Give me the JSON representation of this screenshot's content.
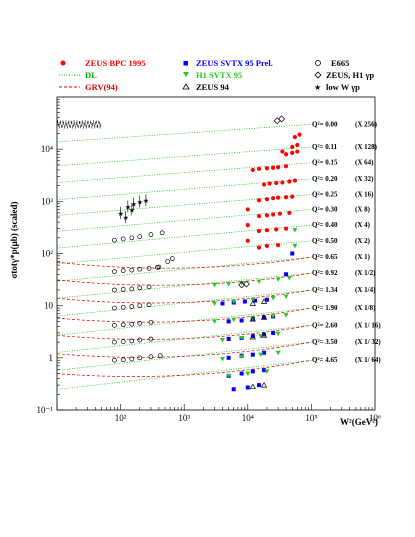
{
  "colors": {
    "zeus_bpc": "#ff0000",
    "zeus_svtx": "#0000ff",
    "h1_svtx": "#22cc22",
    "dl_line": "#00bb00",
    "grv_line": "#dd0000",
    "black": "#000000"
  },
  "legend": {
    "zeus_bpc": "ZEUS BPC 1995",
    "dl": "DL",
    "grv": "GRV(94)",
    "zeus_svtx": "ZEUS SVTX 95 Prel.",
    "h1_svtx": "H1 SVTX 95",
    "zeus94": "ZEUS 94",
    "e665": "E665",
    "zeus_h1_gp": "ZEUS, H1 γp",
    "low_w_gp": "low W γp"
  },
  "chart_data": {
    "type": "scatter",
    "xlabel": "W²(GeV²)",
    "ylabel": "σtotγ*p(μb) (scaled)",
    "x_scale": "log",
    "y_scale": "log",
    "xlim": [
      10,
      1000000
    ],
    "ylim": [
      0.1,
      100000
    ],
    "grid": false,
    "legend_position": "top",
    "x_ticks": [
      {
        "value": 100,
        "label": "10²"
      },
      {
        "value": 1000,
        "label": "10³"
      },
      {
        "value": 10000,
        "label": "10⁴"
      },
      {
        "value": 100000,
        "label": "10⁵"
      },
      {
        "value": 1000000,
        "label": "10⁶"
      }
    ],
    "y_ticks": [
      {
        "value": 0.1,
        "label": "10⁻¹"
      },
      {
        "value": 1,
        "label": "1"
      },
      {
        "value": 10,
        "label": "10"
      },
      {
        "value": 100,
        "label": "10²"
      },
      {
        "value": 1000,
        "label": "10³"
      },
      {
        "value": 10000,
        "label": "10⁴"
      }
    ],
    "bins": [
      {
        "q2": "Q²= 0.00",
        "scale": "(X 256)",
        "y_ref": 30000,
        "slope": 0.085,
        "grv": false
      },
      {
        "q2": "Q²= 0.11",
        "scale": "(X 128)",
        "y_ref": 11000,
        "slope": 0.09,
        "grv": false
      },
      {
        "q2": "Q²= 0.15",
        "scale": "(X  64)",
        "y_ref": 5500,
        "slope": 0.095,
        "grv": false
      },
      {
        "q2": "Q²= 0.20",
        "scale": "(X  32)",
        "y_ref": 2700,
        "slope": 0.1,
        "grv": false
      },
      {
        "q2": "Q²= 0.25",
        "scale": "(X  16)",
        "y_ref": 1350,
        "slope": 0.1,
        "grv": false
      },
      {
        "q2": "Q²= 0.30",
        "scale": "(X   8)",
        "y_ref": 700,
        "slope": 0.105,
        "grv": false
      },
      {
        "q2": "Q²= 0.40",
        "scale": "(X   4)",
        "y_ref": 350,
        "slope": 0.11,
        "grv": false
      },
      {
        "q2": "Q²= 0.50",
        "scale": "(X   2)",
        "y_ref": 175,
        "slope": 0.11,
        "grv": false
      },
      {
        "q2": "Q²= 0.65",
        "scale": "(X   1)",
        "y_ref": 85,
        "slope": 0.115,
        "grv": true
      },
      {
        "q2": "Q²= 0.92",
        "scale": "(X 1/2)",
        "y_ref": 42,
        "slope": 0.12,
        "grv": true
      },
      {
        "q2": "Q²= 1.34",
        "scale": "(X 1/4)",
        "y_ref": 20,
        "slope": 0.125,
        "grv": true
      },
      {
        "q2": "Q²= 1.90",
        "scale": "(X 1/8)",
        "y_ref": 9,
        "slope": 0.13,
        "grv": true
      },
      {
        "q2": "Q²= 2.60",
        "scale": "(X 1/ 16)",
        "y_ref": 4.2,
        "slope": 0.13,
        "grv": true
      },
      {
        "q2": "Q²= 3.50",
        "scale": "(X 1/ 32)",
        "y_ref": 2,
        "slope": 0.135,
        "grv": true
      },
      {
        "q2": "Q²= 4.65",
        "scale": "(X 1/ 64)",
        "y_ref": 0.9,
        "slope": 0.14,
        "grv": true
      }
    ],
    "series": [
      {
        "name": "ZEUS BPC 1995",
        "marker": "circle-filled",
        "color": "#ff0000",
        "points": [
          [
            10000,
            700
          ],
          [
            10000,
            350
          ],
          [
            10000,
            175
          ],
          [
            12000,
            4000
          ],
          [
            15000,
            4200
          ],
          [
            20000,
            4300
          ],
          [
            25000,
            4400
          ],
          [
            30000,
            4500
          ],
          [
            40000,
            4700
          ],
          [
            18000,
            2100
          ],
          [
            22000,
            2200
          ],
          [
            28000,
            2250
          ],
          [
            35000,
            2300
          ],
          [
            45000,
            2400
          ],
          [
            55000,
            2500
          ],
          [
            15000,
            1050
          ],
          [
            20000,
            1100
          ],
          [
            25000,
            1150
          ],
          [
            30000,
            1180
          ],
          [
            40000,
            1200
          ],
          [
            50000,
            1230
          ],
          [
            15000,
            520
          ],
          [
            20000,
            540
          ],
          [
            25000,
            560
          ],
          [
            32000,
            580
          ],
          [
            45000,
            600
          ],
          [
            15000,
            270
          ],
          [
            20000,
            280
          ],
          [
            28000,
            290
          ],
          [
            40000,
            300
          ],
          [
            15000,
            130
          ],
          [
            20000,
            140
          ],
          [
            30000,
            145
          ],
          [
            50000,
            11000
          ],
          [
            60000,
            12000
          ],
          [
            50000,
            8500
          ],
          [
            60000,
            9000
          ],
          [
            35000,
            9000
          ],
          [
            40000,
            8000
          ],
          [
            55000,
            17000
          ],
          [
            65000,
            19000
          ]
        ]
      },
      {
        "name": "ZEUS SVTX 95 Prel.",
        "marker": "square-filled",
        "color": "#0000ff",
        "points": [
          [
            4000,
            11
          ],
          [
            6000,
            11.5
          ],
          [
            9000,
            12
          ],
          [
            13000,
            12.5
          ],
          [
            20000,
            13
          ],
          [
            5000,
            5
          ],
          [
            8000,
            5.2
          ],
          [
            12000,
            5.6
          ],
          [
            18000,
            5.9
          ],
          [
            25000,
            6.2
          ],
          [
            5000,
            2.3
          ],
          [
            8000,
            2.4
          ],
          [
            12000,
            2.6
          ],
          [
            18000,
            2.8
          ],
          [
            25000,
            3
          ],
          [
            5000,
            1
          ],
          [
            8000,
            1.1
          ],
          [
            12000,
            1.15
          ],
          [
            18000,
            1.25
          ],
          [
            5000,
            0.45
          ],
          [
            8000,
            0.5
          ],
          [
            12000,
            0.55
          ],
          [
            18000,
            0.58
          ],
          [
            6000,
            0.25
          ],
          [
            10000,
            0.27
          ],
          [
            15000,
            0.3
          ],
          [
            50000,
            100
          ],
          [
            40000,
            40
          ]
        ]
      },
      {
        "name": "H1 SVTX 95",
        "marker": "triangle-down-filled",
        "color": "#22cc22",
        "points": [
          [
            3000,
            25
          ],
          [
            5000,
            26
          ],
          [
            8000,
            27
          ],
          [
            15000,
            29
          ],
          [
            30000,
            32
          ],
          [
            45000,
            34
          ],
          [
            3000,
            11
          ],
          [
            6000,
            12
          ],
          [
            12000,
            13
          ],
          [
            25000,
            14
          ],
          [
            40000,
            15
          ],
          [
            3000,
            5
          ],
          [
            6000,
            5.4
          ],
          [
            12000,
            5.8
          ],
          [
            25000,
            6.3
          ],
          [
            40000,
            6.6
          ],
          [
            4000,
            2.2
          ],
          [
            8000,
            2.4
          ],
          [
            16000,
            2.6
          ],
          [
            30000,
            2.9
          ],
          [
            4000,
            0.95
          ],
          [
            8000,
            1.05
          ],
          [
            16000,
            1.15
          ],
          [
            30000,
            1.25
          ],
          [
            5000,
            0.45
          ],
          [
            10000,
            0.5
          ],
          [
            20000,
            0.55
          ],
          [
            55000,
            280
          ],
          [
            55000,
            140
          ]
        ]
      },
      {
        "name": "ZEUS 94",
        "marker": "triangle-up-open",
        "color": "#000000",
        "points": [
          [
            12000,
            11
          ],
          [
            18000,
            12
          ],
          [
            12000,
            5.5
          ],
          [
            18000,
            6
          ],
          [
            12000,
            2.5
          ],
          [
            18000,
            2.7
          ],
          [
            12000,
            0.28
          ],
          [
            18000,
            0.3
          ]
        ]
      },
      {
        "name": "E665",
        "marker": "circle-open",
        "color": "#000000",
        "points": [
          [
            80,
            45
          ],
          [
            110,
            47
          ],
          [
            150,
            48
          ],
          [
            200,
            50
          ],
          [
            280,
            52
          ],
          [
            380,
            54
          ],
          [
            80,
            20
          ],
          [
            110,
            20.5
          ],
          [
            150,
            21
          ],
          [
            200,
            22
          ],
          [
            280,
            23
          ],
          [
            80,
            9
          ],
          [
            110,
            9.3
          ],
          [
            150,
            9.6
          ],
          [
            200,
            10
          ],
          [
            280,
            10.4
          ],
          [
            80,
            4.2
          ],
          [
            110,
            4.3
          ],
          [
            150,
            4.4
          ],
          [
            200,
            4.6
          ],
          [
            300,
            4.8
          ],
          [
            80,
            2
          ],
          [
            110,
            2.05
          ],
          [
            150,
            2.1
          ],
          [
            200,
            2.2
          ],
          [
            300,
            2.3
          ],
          [
            80,
            0.9
          ],
          [
            110,
            0.92
          ],
          [
            150,
            0.95
          ],
          [
            200,
            1
          ],
          [
            300,
            1.05
          ],
          [
            420,
            1.1
          ],
          [
            80,
            180
          ],
          [
            110,
            190
          ],
          [
            150,
            200
          ],
          [
            200,
            210
          ],
          [
            300,
            230
          ],
          [
            450,
            250
          ],
          [
            400,
            55
          ],
          [
            550,
            70
          ],
          [
            650,
            80
          ]
        ]
      },
      {
        "name": "ZEUS, H1 γp",
        "marker": "diamond-open",
        "color": "#000000",
        "points": [
          [
            29000,
            35000
          ],
          [
            34000,
            38000
          ],
          [
            8000,
            25
          ],
          [
            9500,
            26
          ]
        ]
      },
      {
        "name": "low W γp",
        "marker": "star",
        "color": "#000000",
        "points": [
          [
            100,
            600
          ],
          [
            130,
            800
          ],
          [
            160,
            900
          ],
          [
            200,
            1000
          ],
          [
            250,
            1050
          ],
          [
            120,
            500
          ],
          [
            150,
            700
          ]
        ]
      }
    ]
  }
}
